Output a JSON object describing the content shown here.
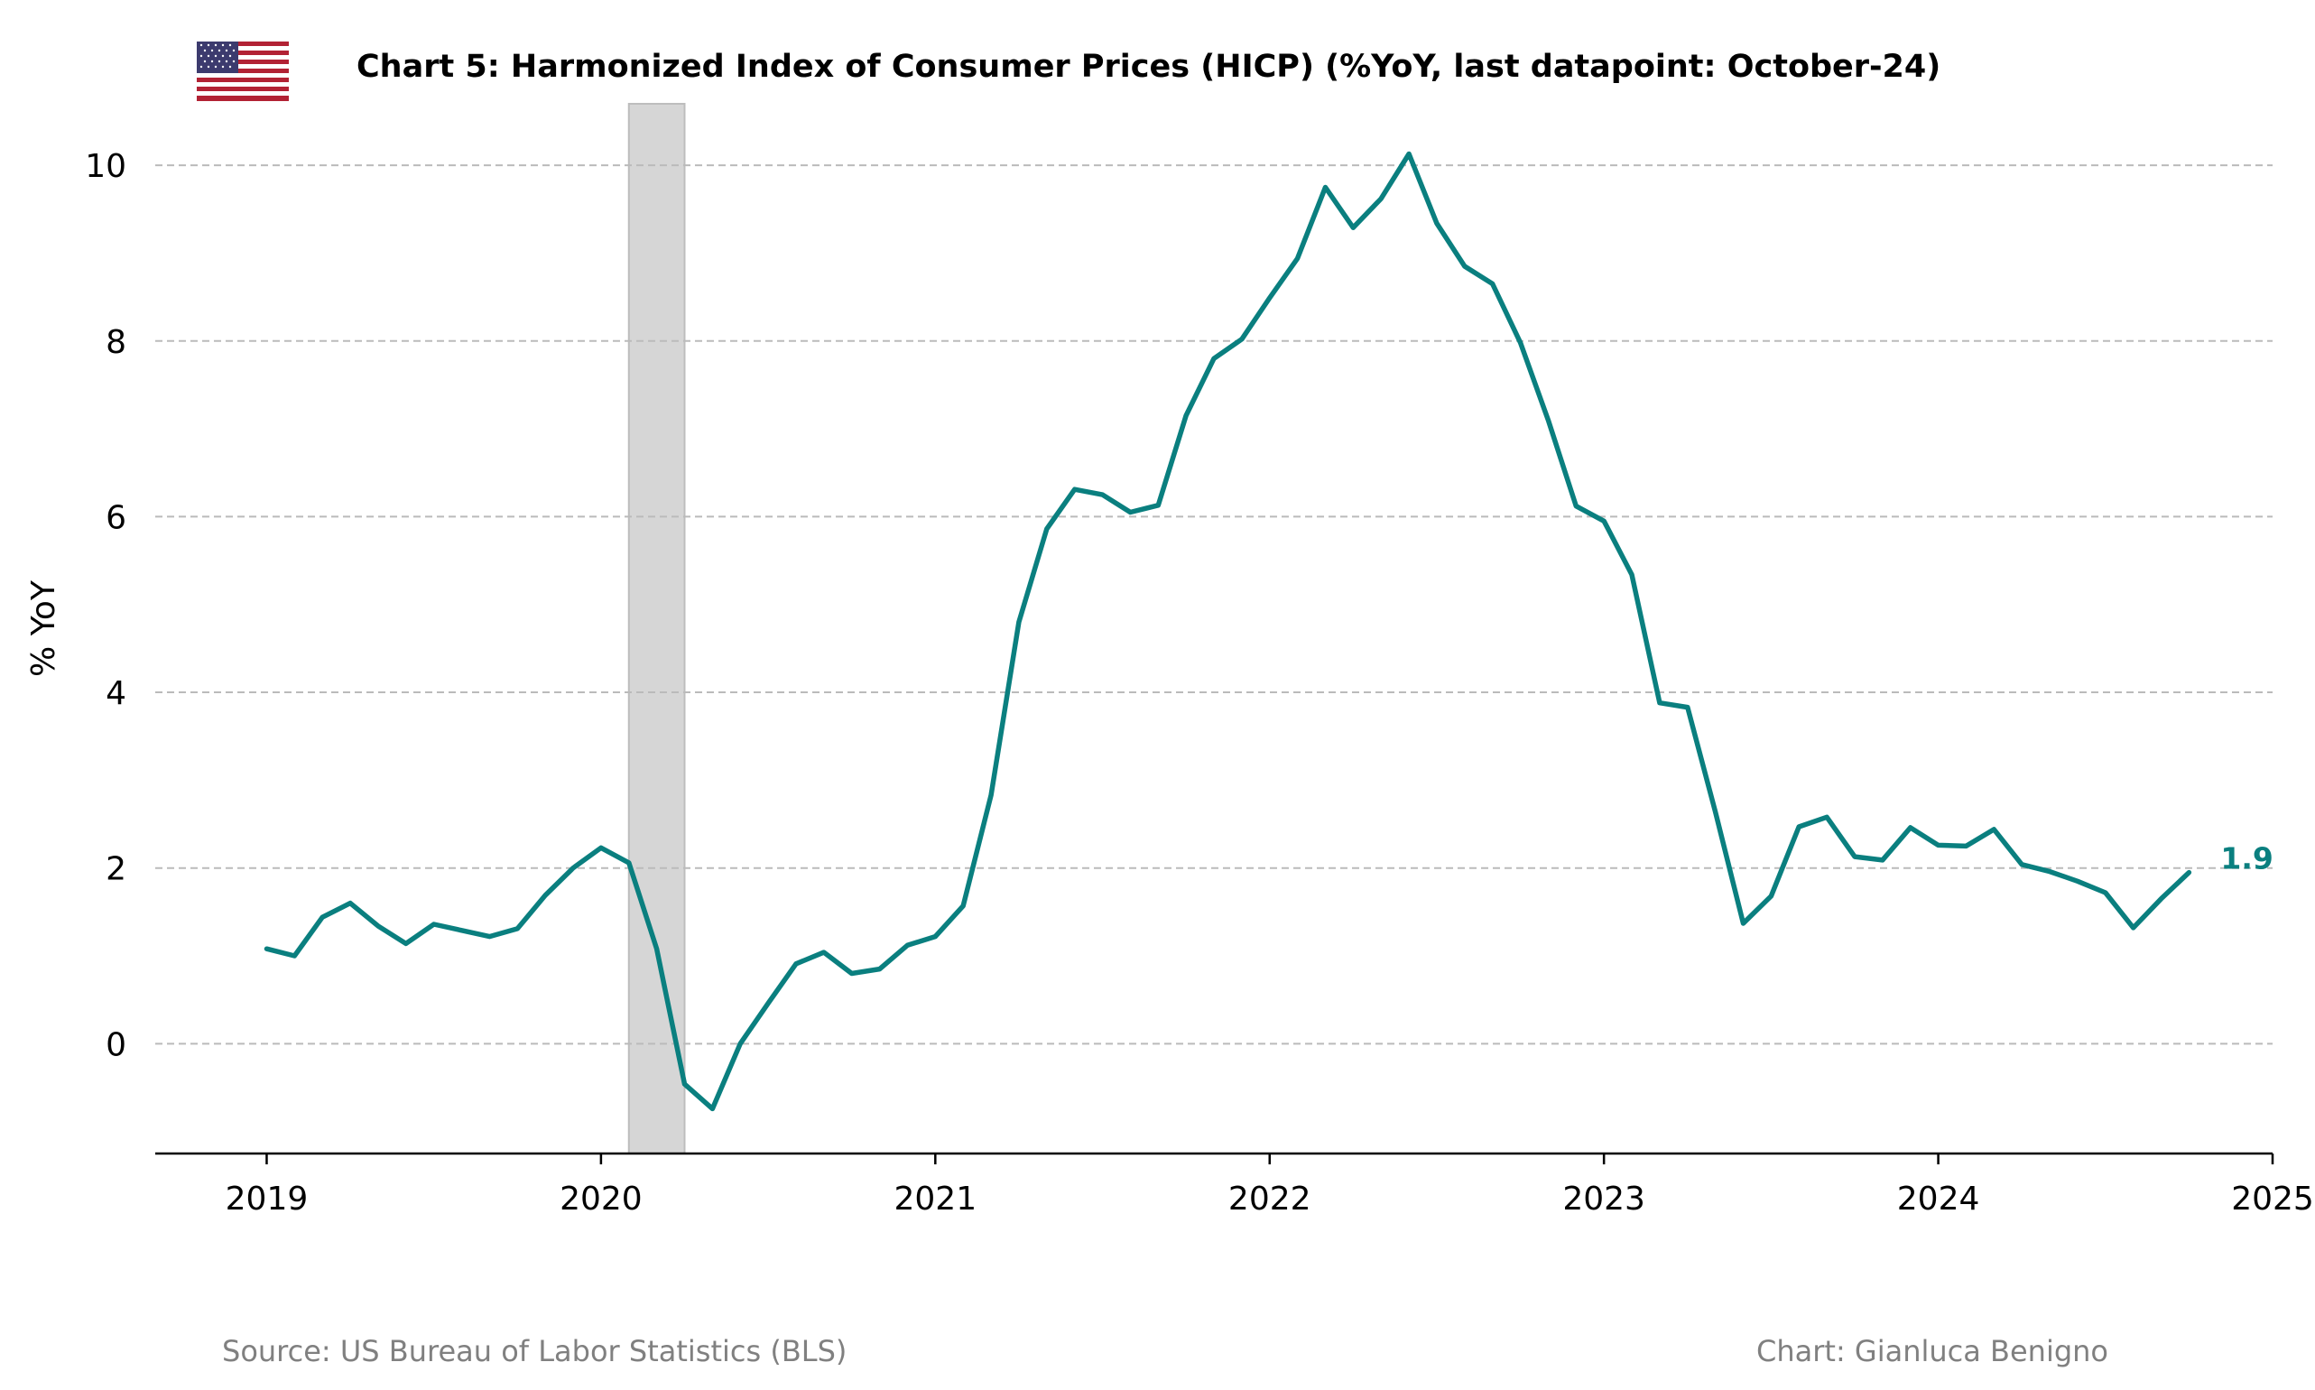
{
  "title": "Chart 5: Harmonized Index of Consumer Prices (HICP) (%YoY, last datapoint: October-24)",
  "source": "Source: US Bureau of Labor Statistics (BLS)",
  "credit": "Chart: Gianluca Benigno",
  "flag_icon": "us-flag-icon",
  "colors": {
    "line": "#0a7f7f",
    "grid": "#bbbbbb",
    "shade": "#d6d6d6",
    "source_text": "#808080"
  },
  "chart_data": {
    "type": "line",
    "title": "Chart 5: Harmonized Index of Consumer Prices (HICP) (%YoY, last datapoint: October-24)",
    "xlabel": "",
    "ylabel": "% YoY",
    "ylim": [
      -1.25,
      10.7
    ],
    "xlim": [
      "2018-09",
      "2025-01"
    ],
    "x_ticks": [
      "2019",
      "2020",
      "2021",
      "2022",
      "2023",
      "2024",
      "2025"
    ],
    "y_ticks": [
      "0",
      "2",
      "4",
      "6",
      "8",
      "10"
    ],
    "grid": "y-dashed",
    "shaded_regions": [
      {
        "start": "2020-02",
        "end": "2020-04"
      }
    ],
    "last_value_label": "1.9",
    "series": [
      {
        "x": [
          "2019-01",
          "2019-02",
          "2019-03",
          "2019-04",
          "2019-05",
          "2019-06",
          "2019-07",
          "2019-08",
          "2019-09",
          "2019-10",
          "2019-11",
          "2019-12",
          "2020-01",
          "2020-02",
          "2020-03",
          "2020-04",
          "2020-05",
          "2020-06",
          "2020-07",
          "2020-08",
          "2020-09",
          "2020-10",
          "2020-11",
          "2020-12",
          "2021-01",
          "2021-02",
          "2021-03",
          "2021-04",
          "2021-05",
          "2021-06",
          "2021-07",
          "2021-08",
          "2021-09",
          "2021-10",
          "2021-11",
          "2021-12",
          "2022-01",
          "2022-02",
          "2022-03",
          "2022-04",
          "2022-05",
          "2022-06",
          "2022-07",
          "2022-08",
          "2022-09",
          "2022-10",
          "2022-11",
          "2022-12",
          "2023-01",
          "2023-02",
          "2023-03",
          "2023-04",
          "2023-05",
          "2023-06",
          "2023-07",
          "2023-08",
          "2023-09",
          "2023-10",
          "2023-11",
          "2023-12",
          "2024-01",
          "2024-02",
          "2024-03",
          "2024-04",
          "2024-05",
          "2024-06",
          "2024-07",
          "2024-08",
          "2024-09",
          "2024-10"
        ],
        "values": [
          1.08,
          1.0,
          1.44,
          1.6,
          1.34,
          1.14,
          1.36,
          1.29,
          1.22,
          1.31,
          1.69,
          2.0,
          2.23,
          2.06,
          1.08,
          -0.46,
          -0.74,
          0.0,
          0.46,
          0.91,
          1.04,
          0.8,
          0.85,
          1.12,
          1.22,
          1.57,
          2.83,
          4.8,
          5.86,
          6.31,
          6.25,
          6.05,
          6.13,
          7.15,
          7.8,
          8.02,
          8.49,
          8.94,
          9.75,
          9.29,
          9.62,
          10.13,
          9.34,
          8.85,
          8.65,
          7.98,
          7.1,
          6.12,
          5.95,
          5.34,
          3.88,
          3.83,
          2.64,
          1.37,
          1.68,
          2.47,
          2.58,
          2.13,
          2.09,
          2.46,
          2.26,
          2.25,
          2.44,
          2.04,
          1.96,
          1.85,
          1.72,
          1.32,
          1.65,
          1.95
        ]
      }
    ]
  }
}
